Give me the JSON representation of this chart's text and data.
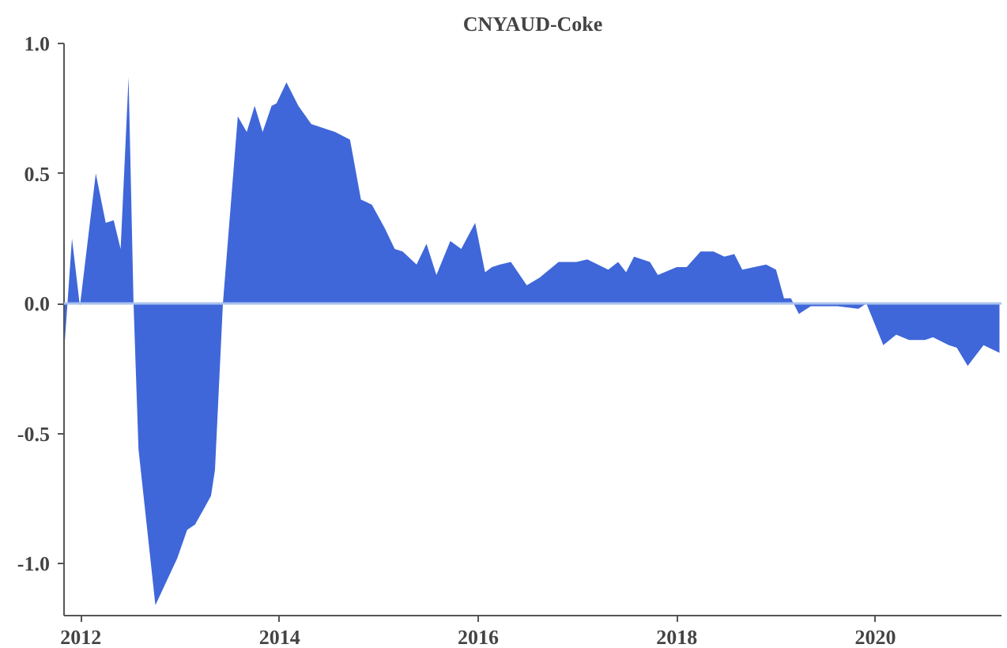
{
  "chart_data": {
    "type": "area",
    "title": "CNYAUD-Coke",
    "x": [
      2011.83,
      2011.91,
      2011.99,
      2012.15,
      2012.25,
      2012.33,
      2012.4,
      2012.48,
      2012.53,
      2012.58,
      2012.75,
      2012.97,
      2013.07,
      2013.15,
      2013.31,
      2013.35,
      2013.43,
      2013.58,
      2013.67,
      2013.75,
      2013.83,
      2013.92,
      2013.97,
      2014.07,
      2014.19,
      2014.32,
      2014.56,
      2014.71,
      2014.82,
      2014.93,
      2015.06,
      2015.16,
      2015.24,
      2015.38,
      2015.48,
      2015.58,
      2015.72,
      2015.83,
      2015.97,
      2016.07,
      2016.14,
      2016.22,
      2016.33,
      2016.49,
      2016.62,
      2016.81,
      2016.99,
      2017.1,
      2017.31,
      2017.41,
      2017.49,
      2017.57,
      2017.73,
      2017.81,
      2018.0,
      2018.1,
      2018.24,
      2018.37,
      2018.48,
      2018.58,
      2018.66,
      2018.9,
      2019.0,
      2019.08,
      2019.15,
      2019.23,
      2019.35,
      2019.62,
      2019.83,
      2019.91,
      2020.08,
      2020.21,
      2020.34,
      2020.5,
      2020.58,
      2020.74,
      2020.82,
      2020.93,
      2021.09,
      2021.25
    ],
    "series": [
      {
        "color": "#3f67d9",
        "values": [
          -0.19,
          0.25,
          -0.01,
          0.5,
          0.31,
          0.32,
          0.21,
          0.87,
          0.0,
          -0.56,
          -1.16,
          -0.98,
          -0.87,
          -0.85,
          -0.74,
          -0.64,
          0.0,
          0.72,
          0.66,
          0.76,
          0.66,
          0.76,
          0.77,
          0.85,
          0.76,
          0.69,
          0.66,
          0.63,
          0.4,
          0.38,
          0.29,
          0.21,
          0.2,
          0.15,
          0.23,
          0.11,
          0.24,
          0.21,
          0.31,
          0.12,
          0.14,
          0.15,
          0.16,
          0.07,
          0.1,
          0.16,
          0.16,
          0.17,
          0.13,
          0.16,
          0.12,
          0.18,
          0.16,
          0.11,
          0.14,
          0.14,
          0.2,
          0.2,
          0.18,
          0.19,
          0.13,
          0.15,
          0.13,
          0.02,
          0.02,
          -0.04,
          -0.01,
          -0.01,
          -0.02,
          0.0,
          -0.16,
          -0.12,
          -0.14,
          -0.14,
          -0.13,
          -0.16,
          -0.17,
          -0.24,
          -0.16,
          -0.19
        ]
      }
    ],
    "xlim": [
      2011.83,
      2021.27
    ],
    "ylim": [
      -1.2,
      1.0
    ],
    "xticks": [
      2012,
      2014,
      2016,
      2018,
      2020
    ],
    "yticks": [
      {
        "value": -1.0,
        "label": "-1.0"
      },
      {
        "value": -0.5,
        "label": "-0.5"
      },
      {
        "value": 0.0,
        "label": "0.0"
      },
      {
        "value": 0.5,
        "label": "0.5"
      },
      {
        "value": 1.0,
        "label": "1.0"
      }
    ],
    "grid": false,
    "ref_lines": [
      {
        "axis": "y",
        "value": 0.0,
        "color": "#a9c2ee"
      }
    ]
  }
}
